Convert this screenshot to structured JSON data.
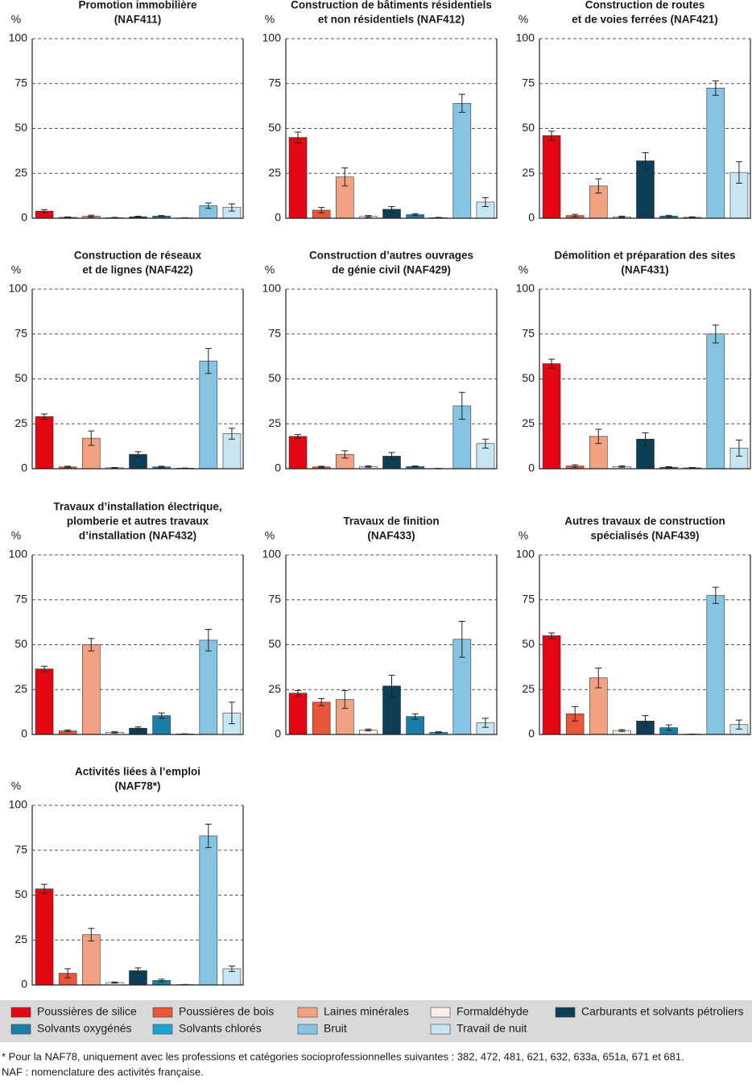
{
  "legend": [
    {
      "name": "Poussières de silice",
      "color": "#e30613"
    },
    {
      "name": "Poussières de bois",
      "color": "#e8573a"
    },
    {
      "name": "Laines minérales",
      "color": "#f3a183"
    },
    {
      "name": "Formaldéhyde",
      "color": "#fcefe7"
    },
    {
      "name": "Carburants et solvants pétroliers",
      "color": "#0d3e55"
    },
    {
      "name": "Solvants oxygénés",
      "color": "#1a7ea8"
    },
    {
      "name": "Solvants chlorés",
      "color": "#1fa3d2"
    },
    {
      "name": "Bruit",
      "color": "#86c5e2"
    },
    {
      "name": "Travail de nuit",
      "color": "#c8e5f2"
    }
  ],
  "chart_data": [
    {
      "type": "bar",
      "title": [
        "Promotion immobilière",
        "(NAF411)"
      ],
      "ylabel": "%",
      "ylim": [
        0,
        100
      ],
      "yticks": [
        0,
        25,
        50,
        75,
        100
      ],
      "grid": true,
      "values": [
        4,
        0.5,
        1.2,
        0.3,
        0.8,
        1.2,
        0.2,
        7,
        6
      ],
      "errors": [
        0.8,
        0.3,
        0.5,
        0.2,
        0.3,
        0.3,
        0.1,
        1.5,
        2
      ]
    },
    {
      "type": "bar",
      "title": [
        "Construction de bâtiments résidentiels",
        "et non résidentiels (NAF412)"
      ],
      "ylabel": "%",
      "ylim": [
        0,
        100
      ],
      "yticks": [
        0,
        25,
        50,
        75,
        100
      ],
      "grid": true,
      "values": [
        45,
        4.5,
        23,
        1,
        5,
        2,
        0.3,
        64,
        9
      ],
      "errors": [
        3,
        1.5,
        5,
        0.5,
        1.5,
        0.5,
        0.2,
        5,
        2.5
      ]
    },
    {
      "type": "bar",
      "title": [
        "Construction de routes",
        "et de voies ferrées (NAF421)"
      ],
      "ylabel": "%",
      "ylim": [
        0,
        100
      ],
      "yticks": [
        0,
        25,
        50,
        75,
        100
      ],
      "grid": true,
      "values": [
        46,
        1.5,
        18,
        0.8,
        32,
        1.2,
        0.5,
        72.5,
        25.5
      ],
      "errors": [
        2.5,
        0.7,
        4,
        0.4,
        4.5,
        0.4,
        0.3,
        4,
        6
      ]
    },
    {
      "type": "bar",
      "title": [
        "Construction de réseaux",
        "et de lignes (NAF422)"
      ],
      "ylabel": "%",
      "ylim": [
        0,
        100
      ],
      "yticks": [
        0,
        25,
        50,
        75,
        100
      ],
      "grid": true,
      "values": [
        29,
        1,
        17,
        0.5,
        8,
        1,
        0.3,
        60,
        19.5
      ],
      "errors": [
        1.5,
        0.4,
        4,
        0.2,
        1.5,
        0.4,
        0.1,
        7,
        3
      ]
    },
    {
      "type": "bar",
      "title": [
        "Construction d’autres ouvrages",
        "de génie civil (NAF429)"
      ],
      "ylabel": "%",
      "ylim": [
        0,
        100
      ],
      "yticks": [
        0,
        25,
        50,
        75,
        100
      ],
      "grid": true,
      "values": [
        18,
        1,
        8,
        1.2,
        7,
        1.2,
        0.1,
        35,
        14
      ],
      "errors": [
        1,
        0.4,
        2,
        0.4,
        2,
        0.3,
        0.1,
        7.5,
        2.5
      ]
    },
    {
      "type": "bar",
      "title": [
        "Démolition et préparation des sites",
        "(NAF431)"
      ],
      "ylabel": "%",
      "ylim": [
        0,
        100
      ],
      "yticks": [
        0,
        25,
        50,
        75,
        100
      ],
      "grid": true,
      "values": [
        58.5,
        1.5,
        18,
        1.2,
        16.5,
        0.8,
        0.5,
        75,
        11.5
      ],
      "errors": [
        2.5,
        0.7,
        4,
        0.4,
        3.5,
        0.3,
        0.2,
        5,
        4.5
      ]
    },
    {
      "type": "bar",
      "title": [
        "Travaux d’installation électrique,",
        "plomberie et autres travaux",
        "d’installation (NAF432)"
      ],
      "ylabel": "%",
      "ylim": [
        0,
        100
      ],
      "yticks": [
        0,
        25,
        50,
        75,
        100
      ],
      "grid": true,
      "values": [
        36.5,
        2,
        50,
        1.2,
        3.5,
        10.5,
        0.3,
        52.5,
        12
      ],
      "errors": [
        1.5,
        0.5,
        3.5,
        0.4,
        0.7,
        1.5,
        0.1,
        6,
        6
      ]
    },
    {
      "type": "bar",
      "title": [
        "Travaux de finition",
        "(NAF433)"
      ],
      "ylabel": "%",
      "ylim": [
        0,
        100
      ],
      "yticks": [
        0,
        25,
        50,
        75,
        100
      ],
      "grid": true,
      "values": [
        23,
        18,
        19.5,
        2.5,
        27,
        10,
        1.2,
        53,
        6.5
      ],
      "errors": [
        1.5,
        2,
        5,
        0.5,
        6,
        1.5,
        0.3,
        10,
        2.5
      ]
    },
    {
      "type": "bar",
      "title": [
        "Autres travaux de construction",
        "spécialisés (NAF439)"
      ],
      "ylabel": "%",
      "ylim": [
        0,
        100
      ],
      "yticks": [
        0,
        25,
        50,
        75,
        100
      ],
      "grid": true,
      "values": [
        55,
        11.5,
        31.5,
        2.2,
        7.5,
        3.8,
        0.2,
        77.5,
        5.5
      ],
      "errors": [
        1.5,
        4,
        5.5,
        0.5,
        3,
        1.5,
        0.1,
        4.5,
        2.5
      ]
    },
    {
      "type": "bar",
      "title": [
        "Activités liées à l’emploi",
        "(NAF78*)"
      ],
      "ylabel": "%",
      "ylim": [
        0,
        100
      ],
      "yticks": [
        0,
        25,
        50,
        75,
        100
      ],
      "grid": true,
      "values": [
        53.5,
        6.5,
        28,
        1.3,
        8,
        2.5,
        0.2,
        83,
        9
      ],
      "errors": [
        2.5,
        2.5,
        3.5,
        0.3,
        1.5,
        0.7,
        0.1,
        6.5,
        1.5
      ]
    }
  ],
  "notes": [
    "* Pour la NAF78, uniquement avec les professions et catégories socioprofessionnelles suivantes : 382, 472, 481, 621, 632, 633a, 651a, 671 et 681.",
    "NAF : nomenclature des activités française."
  ]
}
